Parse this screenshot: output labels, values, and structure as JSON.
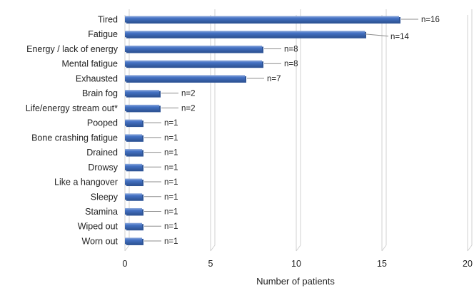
{
  "chart_data": {
    "type": "bar",
    "orientation": "horizontal",
    "categories": [
      "Tired",
      "Fatigue",
      "Energy / lack of energy",
      "Mental fatigue",
      "Exhausted",
      "Brain fog",
      "Life/energy stream out*",
      "Pooped",
      "Bone crashing fatigue",
      "Drained",
      "Drowsy",
      "Like a hangover",
      "Sleepy",
      "Stamina",
      "Wiped out",
      "Worn out"
    ],
    "values": [
      16,
      14,
      8,
      8,
      7,
      2,
      2,
      1,
      1,
      1,
      1,
      1,
      1,
      1,
      1,
      1
    ],
    "data_labels": [
      "n=16",
      "n=14",
      "n=8",
      "n=8",
      "n=7",
      "n=2",
      "n=2",
      "n=1",
      "n=1",
      "n=1",
      "n=1",
      "n=1",
      "n=1",
      "n=1",
      "n=1",
      "n=1"
    ],
    "title": "",
    "xlabel": "Number of patients",
    "ylabel": "",
    "xlim": [
      0,
      20
    ],
    "xticks": [
      0,
      5,
      10,
      15,
      20
    ],
    "grid": true,
    "legend": "none",
    "colors": {
      "bar": "#4472C4",
      "bar_dark": "#2F5597",
      "bar_light": "#8FAADC",
      "grid": "#D0D0D0",
      "text": "#222222",
      "leader": "#8C8C8C"
    }
  }
}
